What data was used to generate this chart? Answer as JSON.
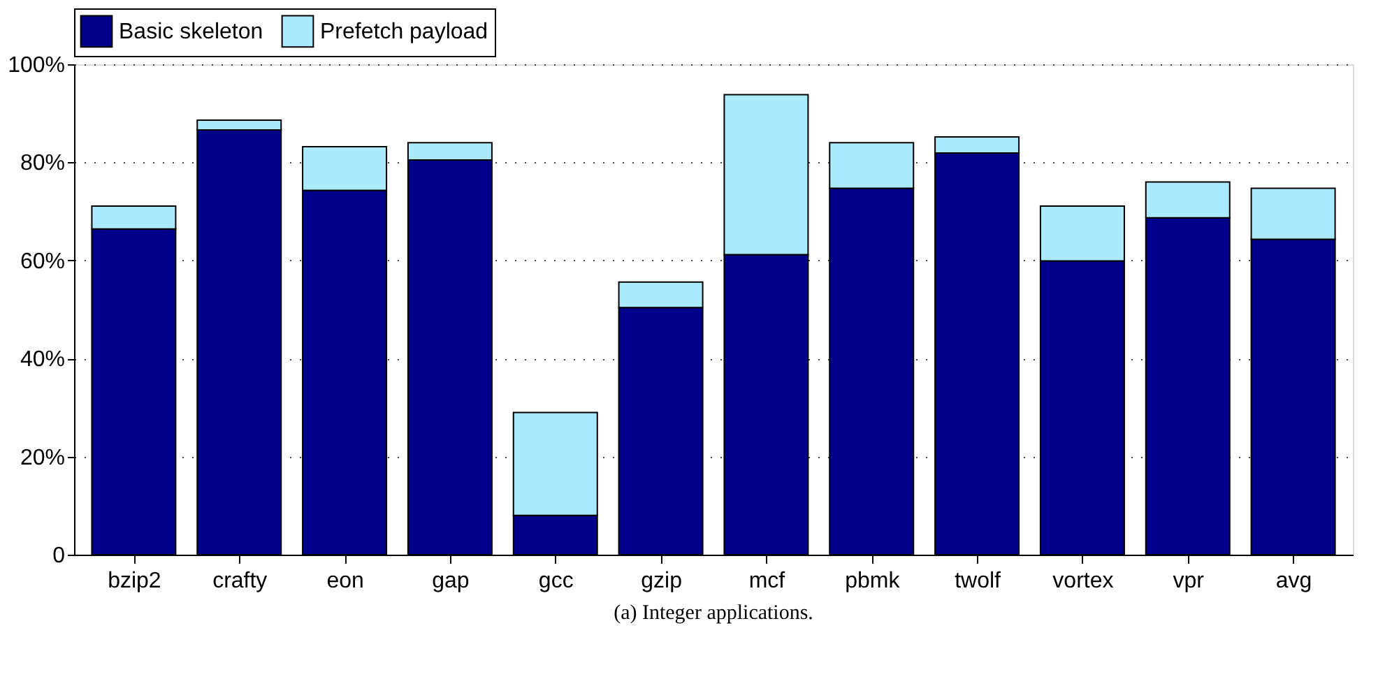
{
  "chart_data": {
    "type": "bar",
    "stacked": true,
    "categories": [
      "bzip2",
      "crafty",
      "eon",
      "gap",
      "gcc",
      "gzip",
      "mcf",
      "pbmk",
      "twolf",
      "vortex",
      "vpr",
      "avg"
    ],
    "series": [
      {
        "name": "Basic skeleton",
        "color": "#00008b",
        "values": [
          66.4,
          86.6,
          74.3,
          80.5,
          8.0,
          50.4,
          61.2,
          74.7,
          81.9,
          59.9,
          68.7,
          64.3
        ]
      },
      {
        "name": "Prefetch payload",
        "color": "#aaeafc",
        "values": [
          4.7,
          2.0,
          8.9,
          3.5,
          21.0,
          5.2,
          32.6,
          9.3,
          3.3,
          11.2,
          7.3,
          10.4
        ]
      }
    ],
    "ylim": [
      0,
      100
    ],
    "yticks": [
      0,
      {
        "value": 20,
        "label": "20%"
      },
      {
        "value": 40,
        "label": "40%"
      },
      {
        "value": 60,
        "label": "60%"
      },
      {
        "value": 80,
        "label": "80%"
      },
      {
        "value": 100,
        "label": "100%"
      }
    ],
    "grid": "y",
    "legend": "top",
    "annotations": [
      "(a)  Integer applications."
    ]
  }
}
